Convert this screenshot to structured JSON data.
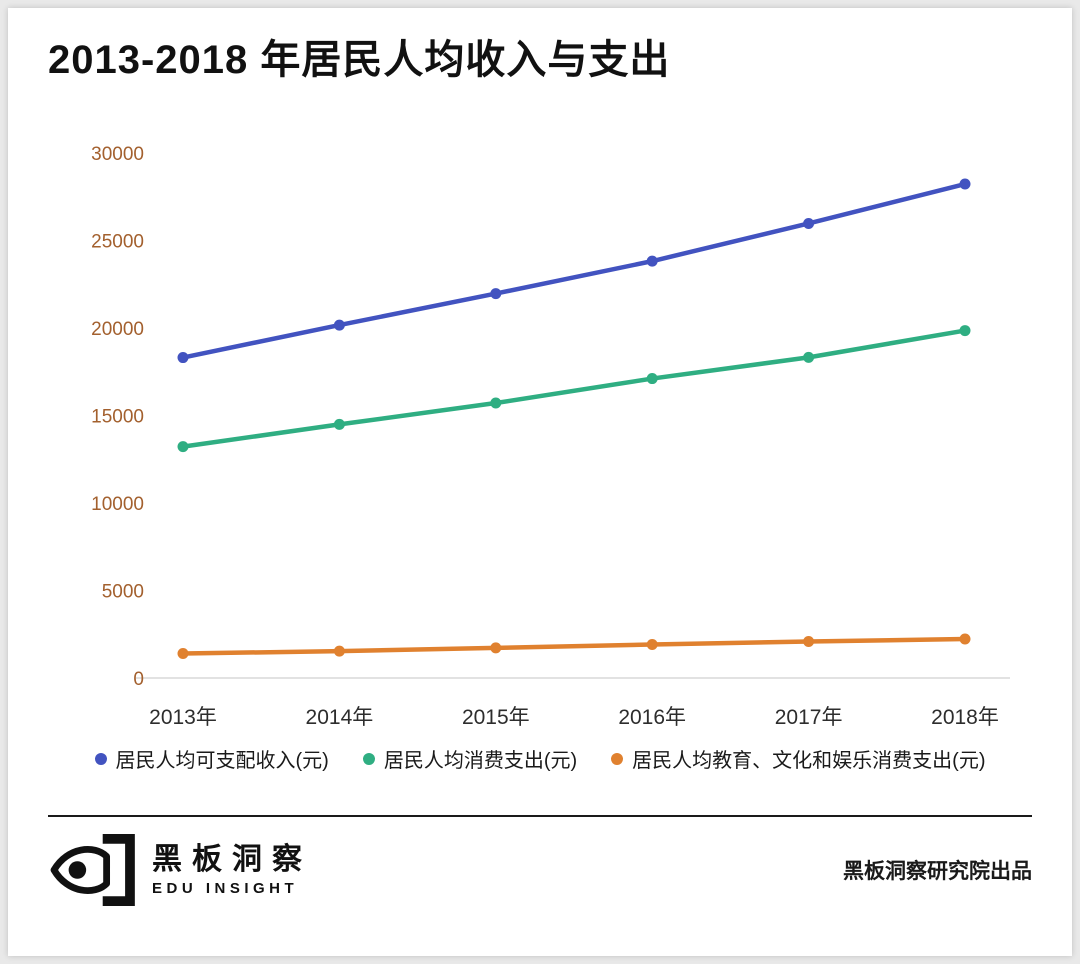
{
  "chart_data": {
    "type": "line",
    "title": "2013-2018 年居民人均收入与支出",
    "x": [
      "2013年",
      "2014年",
      "2015年",
      "2016年",
      "2017年",
      "2018年"
    ],
    "series": [
      {
        "name": "居民人均可支配收入(元)",
        "color": "#4253c0",
        "values": [
          18311,
          20167,
          21966,
          23821,
          25974,
          28228
        ]
      },
      {
        "name": "居民人均消费支出(元)",
        "color": "#2fae82",
        "values": [
          13220,
          14491,
          15712,
          17111,
          18322,
          19853
        ]
      },
      {
        "name": "居民人均教育、文化和娱乐消费支出(元)",
        "color": "#e0812f",
        "values": [
          1398,
          1536,
          1723,
          1915,
          2086,
          2226
        ]
      }
    ],
    "ylim": [
      0,
      30000
    ],
    "yticks": [
      0,
      5000,
      10000,
      15000,
      20000,
      25000,
      30000
    ],
    "grid": false,
    "legend_position": "bottom",
    "y_tick_color": "#a3602e",
    "x_tick_color": "#2d2d2d",
    "axis_line_color": "#e2e2e2"
  },
  "footer": {
    "brand_name": "黑板洞察",
    "brand_sub": "EDU INSIGHT",
    "credit": "黑板洞察研究院出品"
  }
}
